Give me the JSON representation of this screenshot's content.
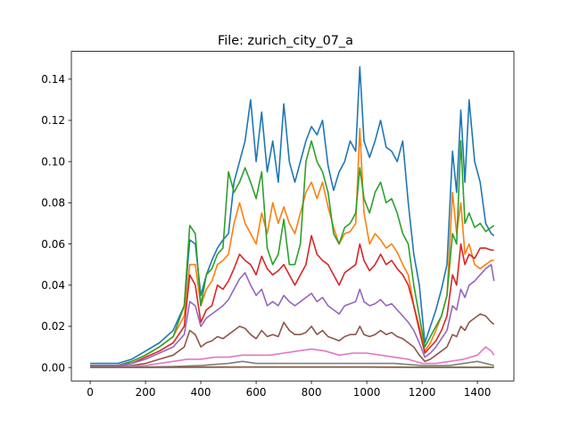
{
  "chart_data": {
    "type": "line",
    "title": "File: zurich_city_07_a",
    "xlabel": "",
    "ylabel": "",
    "xlim": [
      -68,
      1532
    ],
    "ylim": [
      -0.0065,
      0.1535
    ],
    "xticks": [
      0,
      200,
      400,
      600,
      800,
      1000,
      1200,
      1400
    ],
    "yticks": [
      0.0,
      0.02,
      0.04,
      0.06,
      0.08,
      0.1,
      0.12,
      0.14
    ],
    "ytick_labels": [
      "0.00",
      "0.02",
      "0.04",
      "0.06",
      "0.08",
      "0.10",
      "0.12",
      "0.14"
    ],
    "grid": false,
    "legend": false,
    "series": [
      {
        "color": "#1f77b4",
        "x": [
          0,
          50,
          100,
          150,
          200,
          250,
          300,
          340,
          360,
          380,
          400,
          420,
          440,
          460,
          480,
          500,
          520,
          540,
          560,
          580,
          600,
          620,
          640,
          660,
          680,
          700,
          720,
          740,
          760,
          780,
          800,
          820,
          840,
          860,
          880,
          900,
          920,
          940,
          960,
          975,
          990,
          1010,
          1030,
          1050,
          1070,
          1090,
          1110,
          1130,
          1150,
          1170,
          1190,
          1210,
          1230,
          1250,
          1270,
          1290,
          1310,
          1325,
          1340,
          1355,
          1370,
          1390,
          1410,
          1430,
          1450,
          1460
        ],
        "values": [
          0.002,
          0.002,
          0.002,
          0.004,
          0.008,
          0.012,
          0.018,
          0.03,
          0.062,
          0.06,
          0.035,
          0.045,
          0.052,
          0.058,
          0.062,
          0.065,
          0.09,
          0.1,
          0.11,
          0.13,
          0.1,
          0.124,
          0.095,
          0.11,
          0.09,
          0.128,
          0.1,
          0.09,
          0.1,
          0.11,
          0.117,
          0.113,
          0.12,
          0.098,
          0.086,
          0.095,
          0.1,
          0.11,
          0.105,
          0.146,
          0.11,
          0.102,
          0.11,
          0.12,
          0.107,
          0.105,
          0.1,
          0.11,
          0.08,
          0.055,
          0.04,
          0.012,
          0.02,
          0.028,
          0.038,
          0.05,
          0.105,
          0.085,
          0.125,
          0.09,
          0.13,
          0.1,
          0.09,
          0.07,
          0.065,
          0.064
        ]
      },
      {
        "color": "#ff7f0e",
        "x": [
          0,
          50,
          100,
          150,
          200,
          250,
          300,
          340,
          360,
          380,
          400,
          420,
          440,
          460,
          480,
          500,
          520,
          540,
          560,
          580,
          600,
          620,
          640,
          660,
          680,
          700,
          720,
          740,
          760,
          780,
          800,
          820,
          840,
          860,
          880,
          900,
          920,
          940,
          960,
          975,
          990,
          1010,
          1030,
          1050,
          1070,
          1090,
          1110,
          1130,
          1150,
          1170,
          1190,
          1210,
          1230,
          1250,
          1270,
          1290,
          1310,
          1325,
          1340,
          1355,
          1370,
          1390,
          1410,
          1430,
          1450,
          1460
        ],
        "values": [
          0.001,
          0.001,
          0.001,
          0.003,
          0.006,
          0.01,
          0.015,
          0.025,
          0.05,
          0.05,
          0.03,
          0.038,
          0.042,
          0.05,
          0.052,
          0.055,
          0.07,
          0.08,
          0.07,
          0.065,
          0.06,
          0.075,
          0.065,
          0.08,
          0.07,
          0.078,
          0.07,
          0.065,
          0.075,
          0.085,
          0.09,
          0.082,
          0.09,
          0.078,
          0.068,
          0.06,
          0.065,
          0.066,
          0.07,
          0.116,
          0.075,
          0.06,
          0.065,
          0.062,
          0.058,
          0.06,
          0.056,
          0.05,
          0.045,
          0.03,
          0.02,
          0.008,
          0.012,
          0.018,
          0.025,
          0.035,
          0.085,
          0.065,
          0.08,
          0.055,
          0.06,
          0.05,
          0.048,
          0.05,
          0.052,
          0.052
        ]
      },
      {
        "color": "#2ca02c",
        "x": [
          0,
          50,
          100,
          150,
          200,
          250,
          300,
          340,
          360,
          380,
          400,
          420,
          440,
          460,
          480,
          500,
          520,
          540,
          560,
          580,
          600,
          620,
          640,
          660,
          680,
          700,
          720,
          740,
          760,
          780,
          800,
          820,
          840,
          860,
          880,
          900,
          920,
          940,
          960,
          975,
          990,
          1010,
          1030,
          1050,
          1070,
          1090,
          1110,
          1130,
          1150,
          1170,
          1190,
          1210,
          1230,
          1250,
          1270,
          1290,
          1310,
          1325,
          1340,
          1355,
          1370,
          1390,
          1410,
          1430,
          1450,
          1460
        ],
        "values": [
          0.001,
          0.001,
          0.001,
          0.003,
          0.006,
          0.01,
          0.015,
          0.03,
          0.069,
          0.065,
          0.03,
          0.045,
          0.048,
          0.055,
          0.058,
          0.095,
          0.085,
          0.09,
          0.097,
          0.09,
          0.082,
          0.095,
          0.058,
          0.05,
          0.055,
          0.072,
          0.05,
          0.05,
          0.06,
          0.1,
          0.11,
          0.1,
          0.095,
          0.085,
          0.065,
          0.06,
          0.068,
          0.07,
          0.075,
          0.097,
          0.082,
          0.075,
          0.085,
          0.09,
          0.08,
          0.082,
          0.075,
          0.065,
          0.06,
          0.04,
          0.025,
          0.01,
          0.015,
          0.02,
          0.025,
          0.035,
          0.065,
          0.06,
          0.11,
          0.07,
          0.075,
          0.068,
          0.07,
          0.066,
          0.068,
          0.069
        ]
      },
      {
        "color": "#d62728",
        "x": [
          0,
          50,
          100,
          150,
          200,
          250,
          300,
          340,
          360,
          380,
          400,
          420,
          440,
          460,
          480,
          500,
          520,
          540,
          560,
          580,
          600,
          620,
          640,
          660,
          680,
          700,
          720,
          740,
          760,
          780,
          800,
          820,
          840,
          860,
          880,
          900,
          920,
          940,
          960,
          975,
          990,
          1010,
          1030,
          1050,
          1070,
          1090,
          1110,
          1130,
          1150,
          1170,
          1190,
          1210,
          1230,
          1250,
          1270,
          1290,
          1310,
          1325,
          1340,
          1355,
          1370,
          1390,
          1410,
          1430,
          1450,
          1460
        ],
        "values": [
          0.001,
          0.001,
          0.001,
          0.002,
          0.005,
          0.008,
          0.012,
          0.02,
          0.045,
          0.04,
          0.022,
          0.028,
          0.03,
          0.04,
          0.038,
          0.042,
          0.048,
          0.055,
          0.052,
          0.05,
          0.045,
          0.054,
          0.048,
          0.045,
          0.047,
          0.05,
          0.045,
          0.04,
          0.045,
          0.05,
          0.064,
          0.055,
          0.052,
          0.05,
          0.045,
          0.04,
          0.046,
          0.048,
          0.05,
          0.06,
          0.052,
          0.047,
          0.05,
          0.055,
          0.05,
          0.052,
          0.048,
          0.045,
          0.04,
          0.03,
          0.018,
          0.007,
          0.01,
          0.013,
          0.018,
          0.025,
          0.045,
          0.04,
          0.06,
          0.05,
          0.055,
          0.053,
          0.058,
          0.058,
          0.057,
          0.057
        ]
      },
      {
        "color": "#9467bd",
        "x": [
          0,
          50,
          100,
          150,
          200,
          250,
          300,
          340,
          360,
          380,
          400,
          420,
          440,
          460,
          480,
          500,
          520,
          540,
          560,
          580,
          600,
          620,
          640,
          660,
          680,
          700,
          720,
          740,
          760,
          780,
          800,
          820,
          840,
          860,
          880,
          900,
          920,
          940,
          960,
          975,
          990,
          1010,
          1030,
          1050,
          1070,
          1090,
          1110,
          1130,
          1150,
          1170,
          1190,
          1210,
          1230,
          1250,
          1270,
          1290,
          1310,
          1325,
          1340,
          1355,
          1370,
          1390,
          1410,
          1430,
          1450,
          1460
        ],
        "values": [
          0.001,
          0.001,
          0.001,
          0.002,
          0.004,
          0.007,
          0.01,
          0.016,
          0.032,
          0.03,
          0.02,
          0.024,
          0.026,
          0.028,
          0.03,
          0.033,
          0.038,
          0.043,
          0.046,
          0.04,
          0.035,
          0.038,
          0.03,
          0.032,
          0.03,
          0.035,
          0.032,
          0.03,
          0.032,
          0.034,
          0.036,
          0.032,
          0.034,
          0.03,
          0.028,
          0.026,
          0.03,
          0.031,
          0.032,
          0.038,
          0.032,
          0.03,
          0.031,
          0.033,
          0.03,
          0.031,
          0.028,
          0.025,
          0.022,
          0.018,
          0.012,
          0.005,
          0.007,
          0.01,
          0.014,
          0.018,
          0.03,
          0.028,
          0.038,
          0.034,
          0.04,
          0.042,
          0.045,
          0.048,
          0.05,
          0.042
        ]
      },
      {
        "color": "#8c564b",
        "x": [
          0,
          50,
          100,
          150,
          200,
          250,
          300,
          340,
          360,
          380,
          400,
          420,
          440,
          460,
          480,
          500,
          520,
          540,
          560,
          580,
          600,
          620,
          640,
          660,
          680,
          700,
          720,
          740,
          760,
          780,
          800,
          820,
          840,
          860,
          880,
          900,
          920,
          940,
          960,
          975,
          990,
          1010,
          1030,
          1050,
          1070,
          1090,
          1110,
          1130,
          1150,
          1170,
          1190,
          1210,
          1230,
          1250,
          1270,
          1290,
          1310,
          1325,
          1340,
          1355,
          1370,
          1390,
          1410,
          1430,
          1450,
          1460
        ],
        "values": [
          0.0005,
          0.0005,
          0.0005,
          0.001,
          0.002,
          0.004,
          0.006,
          0.01,
          0.018,
          0.016,
          0.01,
          0.012,
          0.013,
          0.015,
          0.014,
          0.016,
          0.018,
          0.02,
          0.019,
          0.016,
          0.014,
          0.018,
          0.015,
          0.016,
          0.015,
          0.022,
          0.018,
          0.016,
          0.016,
          0.017,
          0.02,
          0.016,
          0.018,
          0.015,
          0.014,
          0.013,
          0.015,
          0.016,
          0.016,
          0.02,
          0.016,
          0.015,
          0.016,
          0.018,
          0.016,
          0.017,
          0.015,
          0.014,
          0.012,
          0.01,
          0.006,
          0.003,
          0.004,
          0.006,
          0.008,
          0.01,
          0.016,
          0.015,
          0.02,
          0.018,
          0.022,
          0.024,
          0.026,
          0.025,
          0.022,
          0.021
        ]
      },
      {
        "color": "#e377c2",
        "x": [
          0,
          100,
          200,
          250,
          300,
          350,
          400,
          450,
          500,
          550,
          600,
          650,
          700,
          750,
          800,
          850,
          900,
          950,
          1000,
          1050,
          1100,
          1150,
          1200,
          1250,
          1300,
          1350,
          1400,
          1430,
          1450,
          1460
        ],
        "values": [
          0.0002,
          0.0003,
          0.001,
          0.002,
          0.003,
          0.004,
          0.004,
          0.005,
          0.005,
          0.006,
          0.006,
          0.006,
          0.007,
          0.008,
          0.009,
          0.008,
          0.006,
          0.007,
          0.007,
          0.006,
          0.005,
          0.004,
          0.002,
          0.002,
          0.003,
          0.004,
          0.006,
          0.01,
          0.008,
          0.006
        ]
      },
      {
        "color": "#7f7f7f",
        "x": [
          0,
          100,
          200,
          300,
          400,
          450,
          500,
          550,
          600,
          700,
          750,
          800,
          850,
          900,
          1000,
          1100,
          1200,
          1300,
          1350,
          1400,
          1460
        ],
        "values": [
          0.0002,
          0.0002,
          0.0003,
          0.0005,
          0.001,
          0.0015,
          0.002,
          0.003,
          0.002,
          0.002,
          0.002,
          0.002,
          0.002,
          0.002,
          0.002,
          0.002,
          0.001,
          0.001,
          0.002,
          0.003,
          0.001
        ]
      },
      {
        "color": "#bcbd22",
        "x": [
          0,
          200,
          400,
          600,
          800,
          1000,
          1200,
          1400,
          1460
        ],
        "values": [
          0.0001,
          0.0001,
          0.0002,
          0.0003,
          0.0003,
          0.0003,
          0.0002,
          0.0002,
          0.0002
        ]
      },
      {
        "color": "#17becf",
        "x": [
          0,
          200,
          400,
          600,
          800,
          1000,
          1200,
          1400,
          1460
        ],
        "values": [
          0.0001,
          0.0001,
          0.0001,
          0.0002,
          0.0002,
          0.0002,
          0.0001,
          0.0001,
          0.0001
        ]
      },
      {
        "color": "#8c564b",
        "x": [
          0,
          200,
          400,
          600,
          800,
          1000,
          1200,
          1400,
          1460
        ],
        "values": [
          0.0001,
          0.0001,
          0.0002,
          0.0002,
          0.0002,
          0.0002,
          0.0001,
          0.0001,
          0.0001
        ]
      }
    ]
  }
}
